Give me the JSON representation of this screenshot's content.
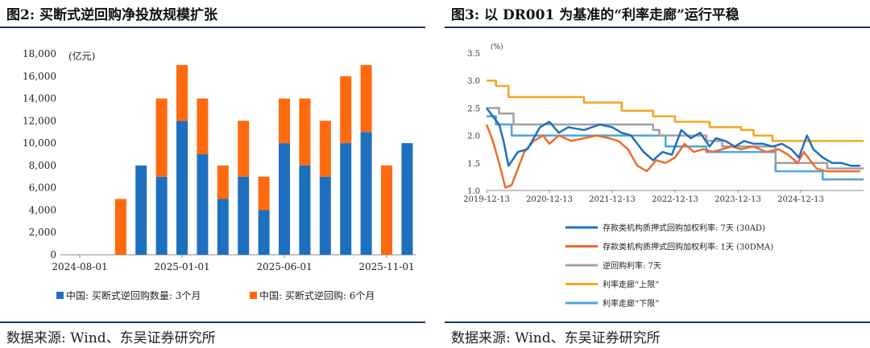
{
  "left": {
    "title": "图2: 买断式逆回购净投放规模扩张",
    "source": "数据来源: Wind、东吴证券研究所",
    "chart_data": {
      "type": "bar",
      "stacked": true,
      "unit_label": "(亿元)",
      "ylim": [
        0,
        18000
      ],
      "yticks": [
        "0",
        "2,000",
        "4,000",
        "6,000",
        "8,000",
        "10,000",
        "12,000",
        "14,000",
        "16,000",
        "18,000"
      ],
      "xtick_labels": [
        "2024-08-01",
        "2025-01-01",
        "2025-06-01",
        "2025-11-01"
      ],
      "grid": false,
      "legend_position": "bottom",
      "categories": [
        "2024-08",
        "2024-09",
        "2024-10",
        "2024-11",
        "2024-12",
        "2025-01",
        "2025-02",
        "2025-03",
        "2025-04",
        "2025-05",
        "2025-06",
        "2025-07",
        "2025-08",
        "2025-09",
        "2025-10",
        "2025-11",
        "2025-12"
      ],
      "series": [
        {
          "name": "中国: 买断式逆回购数量: 3个月",
          "color": "#1f6fbf",
          "values": [
            0,
            0,
            0,
            8000,
            7000,
            12000,
            9000,
            5000,
            7000,
            4000,
            10000,
            8000,
            7000,
            10000,
            11000,
            0,
            10000
          ]
        },
        {
          "name": "中国: 买断式逆回购: 6个月",
          "color": "#ff6a0f",
          "values": [
            0,
            0,
            5000,
            0,
            7000,
            5000,
            5000,
            3000,
            5000,
            3000,
            4000,
            6000,
            5000,
            6000,
            6000,
            8000,
            0
          ]
        }
      ]
    }
  },
  "right": {
    "title": "图3: 以 DR001 为基准的“利率走廊”运行平稳",
    "source": "数据来源: Wind、东吴证券研究所",
    "chart_data": {
      "type": "line",
      "unit_label": "(%)",
      "ylim": [
        1.0,
        3.5
      ],
      "yticks": [
        "1.0",
        "1.5",
        "2.0",
        "2.5",
        "3.0",
        "3.5"
      ],
      "xtick_labels": [
        "2019-12-13",
        "2020-12-13",
        "2021-12-13",
        "2022-12-13",
        "2023-12-13",
        "2024-12-13"
      ],
      "x_range": [
        2019.95,
        2025.95
      ],
      "grid": false,
      "legend_position": "bottom",
      "series": [
        {
          "name": "存款类机构质押式回购加权利率: 7天 (30AD)",
          "color": "#1f6fbf",
          "x": [
            2019.95,
            2020.05,
            2020.15,
            2020.22,
            2020.3,
            2020.45,
            2020.6,
            2020.8,
            2020.95,
            2021.1,
            2021.25,
            2021.5,
            2021.75,
            2021.95,
            2022.1,
            2022.25,
            2022.45,
            2022.6,
            2022.75,
            2022.9,
            2023.05,
            2023.2,
            2023.35,
            2023.5,
            2023.6,
            2023.75,
            2023.9,
            2024.05,
            2024.2,
            2024.35,
            2024.5,
            2024.65,
            2024.8,
            2024.92,
            2025.05,
            2025.15,
            2025.3,
            2025.45,
            2025.6,
            2025.75,
            2025.9
          ],
          "y": [
            2.5,
            2.35,
            2.2,
            1.9,
            1.45,
            1.7,
            1.75,
            2.15,
            2.25,
            2.05,
            2.15,
            2.1,
            2.2,
            2.15,
            2.05,
            2.0,
            1.7,
            1.55,
            1.7,
            1.65,
            2.1,
            1.95,
            2.05,
            1.8,
            1.95,
            1.9,
            1.8,
            1.9,
            1.85,
            1.85,
            1.8,
            1.85,
            1.75,
            1.6,
            2.0,
            1.75,
            1.6,
            1.5,
            1.5,
            1.45,
            1.45
          ]
        },
        {
          "name": "存款类机构质押式回购加权利率: 1天 (30DMA)",
          "color": "#ed6c2c",
          "x": [
            2019.95,
            2020.05,
            2020.15,
            2020.25,
            2020.35,
            2020.45,
            2020.55,
            2020.7,
            2020.85,
            2020.95,
            2021.1,
            2021.3,
            2021.5,
            2021.7,
            2021.9,
            2022.05,
            2022.2,
            2022.35,
            2022.5,
            2022.65,
            2022.8,
            2022.95,
            2023.1,
            2023.25,
            2023.4,
            2023.55,
            2023.7,
            2023.85,
            2024.0,
            2024.2,
            2024.4,
            2024.6,
            2024.75,
            2024.9,
            2025.0,
            2025.1,
            2025.2,
            2025.35,
            2025.5,
            2025.7,
            2025.9
          ],
          "y": [
            2.2,
            1.9,
            1.5,
            1.05,
            1.1,
            1.4,
            1.7,
            1.9,
            2.0,
            1.85,
            2.0,
            1.9,
            1.95,
            2.0,
            1.95,
            1.9,
            1.75,
            1.45,
            1.35,
            1.55,
            1.5,
            1.6,
            1.85,
            1.7,
            1.75,
            1.7,
            1.75,
            1.8,
            1.75,
            1.8,
            1.7,
            1.75,
            1.65,
            1.5,
            1.7,
            1.55,
            1.4,
            1.35,
            1.35,
            1.35,
            1.35
          ]
        },
        {
          "name": "逆回购利率: 7天",
          "color": "#a0a0a0",
          "x": [
            2019.95,
            2020.15,
            2020.15,
            2020.38,
            2020.38,
            2022.6,
            2022.6,
            2022.7,
            2022.7,
            2023.45,
            2023.45,
            2023.7,
            2023.7,
            2024.55,
            2024.55,
            2025.37,
            2025.37,
            2025.95
          ],
          "y": [
            2.5,
            2.5,
            2.4,
            2.4,
            2.2,
            2.2,
            2.1,
            2.1,
            2.0,
            2.0,
            1.9,
            1.9,
            1.8,
            1.8,
            1.5,
            1.5,
            1.4,
            1.4
          ]
        },
        {
          "name": "利率走廊“上限”",
          "color": "#f0a820",
          "x": [
            2019.95,
            2020.1,
            2020.1,
            2020.3,
            2020.3,
            2021.5,
            2021.5,
            2022.1,
            2022.1,
            2022.6,
            2022.6,
            2022.95,
            2022.95,
            2023.5,
            2023.5,
            2024.0,
            2024.0,
            2024.2,
            2024.2,
            2024.5,
            2024.5,
            2024.95,
            2024.95,
            2025.95
          ],
          "y": [
            3.0,
            3.0,
            2.9,
            2.9,
            2.7,
            2.7,
            2.6,
            2.6,
            2.45,
            2.45,
            2.35,
            2.35,
            2.25,
            2.25,
            2.15,
            2.15,
            2.1,
            2.1,
            2.0,
            2.0,
            1.9,
            1.9,
            1.9,
            1.9
          ]
        },
        {
          "name": "利率走廊“下限”",
          "color": "#4ba6d8",
          "x": [
            2019.95,
            2020.1,
            2020.1,
            2020.35,
            2020.35,
            2022.8,
            2022.8,
            2023.45,
            2023.45,
            2024.55,
            2024.55,
            2025.3,
            2025.3,
            2025.95
          ],
          "y": [
            2.35,
            2.35,
            2.2,
            2.2,
            2.0,
            2.0,
            1.8,
            1.8,
            1.7,
            1.7,
            1.35,
            1.35,
            1.2,
            1.2
          ]
        }
      ]
    }
  }
}
